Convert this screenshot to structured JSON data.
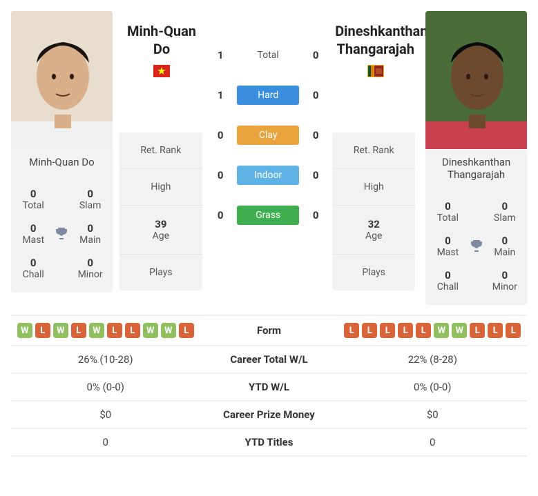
{
  "player1": {
    "name": "Minh-Quan Do",
    "flag_svg": "vn",
    "titles": {
      "total": {
        "v": "0",
        "l": "Total"
      },
      "slam": {
        "v": "0",
        "l": "Slam"
      },
      "mast": {
        "v": "0",
        "l": "Mast"
      },
      "main": {
        "v": "0",
        "l": "Main"
      },
      "chall": {
        "v": "0",
        "l": "Chall"
      },
      "minor": {
        "v": "0",
        "l": "Minor"
      }
    },
    "info": {
      "retrank": {
        "v": "",
        "l": "Ret. Rank"
      },
      "high": {
        "v": "",
        "l": "High"
      },
      "age": {
        "v": "39",
        "l": "Age"
      },
      "plays": {
        "v": "",
        "l": "Plays"
      }
    },
    "form": [
      "W",
      "L",
      "W",
      "L",
      "W",
      "L",
      "L",
      "W",
      "W",
      "L"
    ],
    "stats": {
      "career_wl": "26% (10-28)",
      "ytd_wl": "0% (0-0)",
      "prize": "$0",
      "ytd_titles": "0"
    }
  },
  "player2": {
    "name": "Dineshkanthan Thangarajah",
    "flag_svg": "lk",
    "titles": {
      "total": {
        "v": "0",
        "l": "Total"
      },
      "slam": {
        "v": "0",
        "l": "Slam"
      },
      "mast": {
        "v": "0",
        "l": "Mast"
      },
      "main": {
        "v": "0",
        "l": "Main"
      },
      "chall": {
        "v": "0",
        "l": "Chall"
      },
      "minor": {
        "v": "0",
        "l": "Minor"
      }
    },
    "info": {
      "retrank": {
        "v": "",
        "l": "Ret. Rank"
      },
      "high": {
        "v": "",
        "l": "High"
      },
      "age": {
        "v": "32",
        "l": "Age"
      },
      "plays": {
        "v": "",
        "l": "Plays"
      }
    },
    "form": [
      "L",
      "L",
      "L",
      "L",
      "L",
      "W",
      "W",
      "L",
      "L",
      "L"
    ],
    "stats": {
      "career_wl": "22% (8-28)",
      "ytd_wl": "0% (0-0)",
      "prize": "$0",
      "ytd_titles": "0"
    }
  },
  "h2h": {
    "total": {
      "p1": "1",
      "p2": "0",
      "label": "Total"
    },
    "hard": {
      "p1": "1",
      "p2": "0",
      "label": "Hard"
    },
    "clay": {
      "p1": "0",
      "p2": "0",
      "label": "Clay"
    },
    "indoor": {
      "p1": "0",
      "p2": "0",
      "label": "Indoor"
    },
    "grass": {
      "p1": "0",
      "p2": "0",
      "label": "Grass"
    }
  },
  "statlabels": {
    "form": "Form",
    "career_wl": "Career Total W/L",
    "ytd_wl": "YTD W/L",
    "prize": "Career Prize Money",
    "ytd_titles": "YTD Titles"
  },
  "flags": {
    "vn": "<svg viewBox='0 0 24 18'><rect width='24' height='18' fill='#da251d'/><polygon points='12,3 13.4,7.2 17.8,7.2 14.2,9.8 15.6,14 12,11.4 8.4,14 9.8,9.8 6.2,7.2 10.6,7.2' fill='#ff0'/></svg>",
    "lk": "<svg viewBox='0 0 24 18'><rect width='24' height='18' fill='#ffb700'/><rect x='1' y='1' width='4' height='16' fill='#005641'/><rect x='5' y='1' width='4' height='16' fill='#df7500'/><rect x='10' y='1' width='13' height='16' fill='#8d2029'/><rect x='12' y='5' width='9' height='8' fill='#ffb700' opacity='0.3'/></svg>"
  },
  "photos": {
    "p1_bg": "#e8ded0",
    "p1_skin": "#d9b089",
    "p1_hair": "#1a1410",
    "p1_shirt": "#f0f0f0",
    "p2_bg": "#4a6b3a",
    "p2_skin": "#6b4a2f",
    "p2_hair": "#0a0a0a",
    "p2_shirt": "#c94050"
  }
}
